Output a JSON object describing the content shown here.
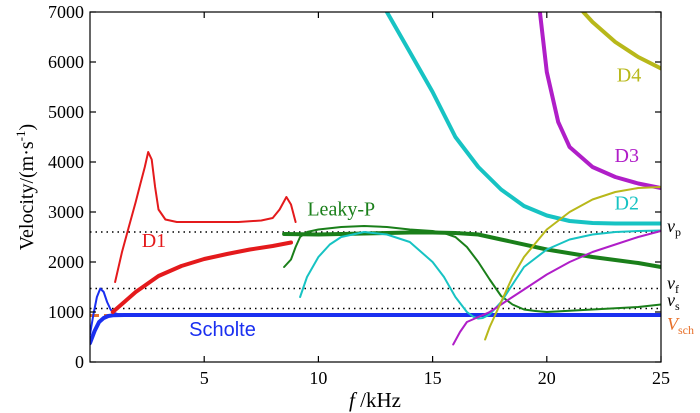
{
  "chart_data": {
    "type": "line",
    "title": "",
    "xlabel": {
      "italic": "f",
      "rest": " /kHz"
    },
    "ylabel": {
      "main": "Velocity/(m·s",
      "sup": "-1",
      "close": ")"
    },
    "xlim": [
      0,
      25
    ],
    "ylim": [
      0,
      7000
    ],
    "xticks": [
      5,
      10,
      15,
      20,
      25
    ],
    "yticks": [
      0,
      1000,
      2000,
      3000,
      4000,
      5000,
      6000,
      7000
    ],
    "reference_lines": [
      {
        "name": "v_p",
        "label_main": "v",
        "label_sub": "p",
        "value": 2600,
        "color": "#000000",
        "style": "dotted"
      },
      {
        "name": "v_f",
        "label_main": "v",
        "label_sub": "f",
        "value": 1470,
        "color": "#000000",
        "style": "dotted"
      },
      {
        "name": "v_s",
        "label_main": "v",
        "label_sub": "s",
        "value": 1070,
        "color": "#000000",
        "style": "dotted"
      },
      {
        "name": "V_sch",
        "label_main": "V",
        "label_sub": "sch",
        "value": 930,
        "color": "#e8702a",
        "style": "dashed"
      }
    ],
    "annotations": [
      {
        "name": "label-d1",
        "text": "D1",
        "color": "#e41a1c",
        "x": 2.8,
        "y": 2300,
        "sans": false
      },
      {
        "name": "label-leaky-p",
        "text": "Leaky-P",
        "color": "#1a7f1a",
        "x": 11.0,
        "y": 2930,
        "sans": false
      },
      {
        "name": "label-scholte",
        "text": "Scholte",
        "color": "#1a2ff0",
        "x": 5.8,
        "y": 520,
        "sans": true
      },
      {
        "name": "label-d2",
        "text": "D2",
        "color": "#17c3c3",
        "x": 23.5,
        "y": 3050,
        "sans": false
      },
      {
        "name": "label-d3",
        "text": "D3",
        "color": "#b01ec8",
        "x": 23.5,
        "y": 4000,
        "sans": false
      },
      {
        "name": "label-d4",
        "text": "D4",
        "color": "#b8b81a",
        "x": 23.6,
        "y": 5610,
        "sans": false
      }
    ],
    "series": [
      {
        "name": "scholte-thick",
        "color": "#1a2ff0",
        "width": 4,
        "x": [
          0,
          0.2,
          0.4,
          0.6,
          0.8,
          1.0,
          1.5,
          2.0,
          3.0,
          5.0,
          10.0,
          15.0,
          20.0,
          25.0
        ],
        "y": [
          380,
          620,
          800,
          880,
          920,
          935,
          940,
          940,
          940,
          940,
          940,
          940,
          940,
          940
        ]
      },
      {
        "name": "scholte-thin",
        "color": "#1a2ff0",
        "width": 2,
        "x": [
          0,
          0.15,
          0.3,
          0.45,
          0.6,
          0.75,
          0.9,
          1.05,
          1.2,
          1.4,
          1.7,
          2.2,
          3.0,
          5.0,
          10.0,
          15.0,
          20.0,
          25.0
        ],
        "y": [
          550,
          950,
          1300,
          1470,
          1400,
          1200,
          1050,
          980,
          960,
          955,
          950,
          950,
          950,
          950,
          950,
          950,
          950,
          950
        ]
      },
      {
        "name": "d1-thick",
        "color": "#e41a1c",
        "width": 4,
        "x": [
          1.0,
          1.5,
          2.0,
          2.5,
          3.0,
          4.0,
          5.0,
          6.0,
          7.0,
          8.0,
          8.8
        ],
        "y": [
          1000,
          1200,
          1400,
          1560,
          1720,
          1920,
          2060,
          2160,
          2250,
          2320,
          2390
        ]
      },
      {
        "name": "d1-thin",
        "color": "#e41a1c",
        "width": 2,
        "x": [
          1.1,
          1.4,
          1.7,
          2.0,
          2.2,
          2.4,
          2.55,
          2.7,
          2.85,
          3.0,
          3.3,
          3.8,
          4.5,
          5.5,
          6.5,
          7.5,
          8.0,
          8.3,
          8.6,
          8.8,
          9.0
        ],
        "y": [
          1600,
          2200,
          2700,
          3200,
          3550,
          3900,
          4200,
          4050,
          3500,
          3050,
          2850,
          2800,
          2800,
          2800,
          2800,
          2830,
          2880,
          3050,
          3300,
          3150,
          2800
        ]
      },
      {
        "name": "leaky-p-thick",
        "color": "#1a7f1a",
        "width": 4,
        "x": [
          8.5,
          10,
          12,
          14,
          15,
          16,
          17,
          18,
          20,
          22,
          24,
          25
        ],
        "y": [
          2560,
          2550,
          2570,
          2590,
          2590,
          2580,
          2550,
          2450,
          2250,
          2100,
          1980,
          1900
        ]
      },
      {
        "name": "leaky-p-thin",
        "color": "#1a7f1a",
        "width": 2,
        "x": [
          8.5,
          8.8,
          9.0,
          9.2,
          9.5,
          10,
          11,
          12,
          13,
          14,
          15,
          15.5,
          16,
          16.5,
          17,
          17.5,
          18,
          18.5,
          19,
          19.5,
          20,
          22,
          24,
          25
        ],
        "y": [
          1900,
          2050,
          2300,
          2500,
          2600,
          2650,
          2700,
          2720,
          2700,
          2650,
          2620,
          2580,
          2500,
          2300,
          2000,
          1650,
          1320,
          1150,
          1050,
          1020,
          1000,
          1050,
          1100,
          1150
        ]
      },
      {
        "name": "d2-thick",
        "color": "#17c3c3",
        "width": 4,
        "x": [
          13.0,
          14.0,
          15.0,
          15.5,
          16.0,
          17.0,
          18.0,
          19.0,
          20.0,
          21.0,
          22.0,
          23.0,
          24.0,
          25.0
        ],
        "y": [
          7000,
          6200,
          5400,
          4950,
          4500,
          3900,
          3450,
          3120,
          2930,
          2820,
          2780,
          2770,
          2770,
          2770
        ]
      },
      {
        "name": "d2-thin",
        "color": "#17c3c3",
        "width": 2,
        "x": [
          9.2,
          9.5,
          10,
          10.5,
          11,
          12,
          13,
          14,
          15,
          15.5,
          16,
          16.5,
          16.8,
          17.0,
          17.2,
          17.5,
          18,
          18.5,
          19,
          20,
          21,
          22,
          23,
          24,
          25
        ],
        "y": [
          1300,
          1700,
          2100,
          2350,
          2500,
          2600,
          2550,
          2400,
          2000,
          1700,
          1300,
          1000,
          900,
          870,
          880,
          950,
          1200,
          1550,
          1900,
          2250,
          2450,
          2550,
          2600,
          2620,
          2630
        ]
      },
      {
        "name": "d3-thick",
        "color": "#b01ec8",
        "width": 4,
        "x": [
          19.7,
          20.0,
          20.5,
          21.0,
          22.0,
          23.0,
          24.0,
          25.0
        ],
        "y": [
          7000,
          5800,
          4800,
          4300,
          3900,
          3700,
          3570,
          3480
        ]
      },
      {
        "name": "d3-thin",
        "color": "#b01ec8",
        "width": 2,
        "x": [
          15.9,
          16.2,
          16.5,
          17.0,
          17.5,
          18.0,
          18.5,
          19.0,
          19.5,
          20.0,
          21,
          22,
          23,
          24,
          25
        ],
        "y": [
          350,
          600,
          800,
          900,
          1000,
          1150,
          1300,
          1450,
          1600,
          1750,
          2000,
          2200,
          2350,
          2500,
          2620
        ]
      },
      {
        "name": "d4-thick",
        "color": "#b8b81a",
        "width": 4,
        "x": [
          21.6,
          22.0,
          23.0,
          24.0,
          25.0
        ],
        "y": [
          7000,
          6800,
          6400,
          6100,
          5870
        ]
      },
      {
        "name": "d4-thin",
        "color": "#b8b81a",
        "width": 2,
        "x": [
          17.3,
          17.5,
          18,
          18.5,
          19,
          20,
          21,
          22,
          23,
          24,
          25
        ],
        "y": [
          450,
          700,
          1200,
          1700,
          2100,
          2650,
          3000,
          3250,
          3400,
          3480,
          3500
        ]
      }
    ]
  }
}
